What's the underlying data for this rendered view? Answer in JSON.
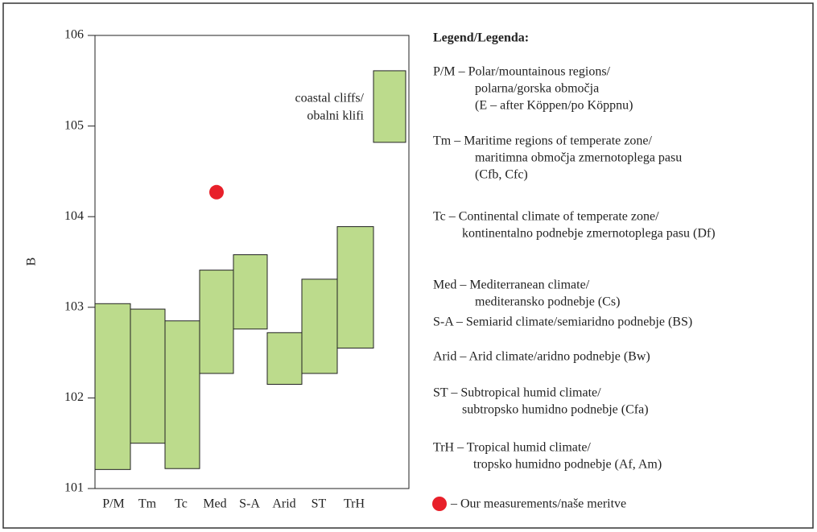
{
  "chart_data": {
    "type": "floating-bar",
    "y_label": "B",
    "categories": [
      "P/M",
      "Tm",
      "Tc",
      "Med",
      "S-A",
      "Arid",
      "ST",
      "TrH",
      null
    ],
    "low": [
      101.21,
      101.5,
      101.22,
      102.27,
      102.76,
      102.15,
      102.27,
      102.55,
      104.82
    ],
    "high": [
      103.04,
      102.98,
      102.85,
      103.41,
      103.58,
      102.72,
      103.31,
      103.89,
      105.61
    ],
    "color": "#bcdb8c",
    "ylim": [
      101,
      106
    ],
    "yticks": [
      101,
      102,
      103,
      104,
      105,
      106
    ],
    "annotation": [
      "coastal cliffs/",
      "obalni klifi"
    ],
    "measurement": {
      "category": "Med",
      "value": 104.27,
      "color": "#e8202a"
    },
    "legend": {
      "title": "Legend/Legenda:",
      "entries": [
        [
          "P/M – Polar/mountainous regions/",
          "polarna/gorska območja",
          "(E – after Köppen/po Köppnu)"
        ],
        [
          "Tm – Maritime regions of temperate zone/",
          "maritimna območja zmernotoplega pasu",
          "(Cfb, Cfc)"
        ],
        [
          "Tc – Continental climate of temperate zone/",
          "kontinentalno podnebje zmernotoplega pasu (Df)"
        ],
        [
          "Med – Mediterranean climate/",
          "mediteransko podnebje (Cs)"
        ],
        [
          "S-A – Semiarid climate/semiaridno podnebje (BS)"
        ],
        [
          "Arid – Arid climate/aridno podnebje (Bw)"
        ],
        [
          "ST – Subtropical humid climate/",
          "subtropsko humidno podnebje (Cfa)"
        ],
        [
          "TrH – Tropical humid climate/",
          "tropsko humidno podnebje (Af, Am)"
        ]
      ],
      "measurement": "– Our measurements/naše meritve"
    }
  }
}
